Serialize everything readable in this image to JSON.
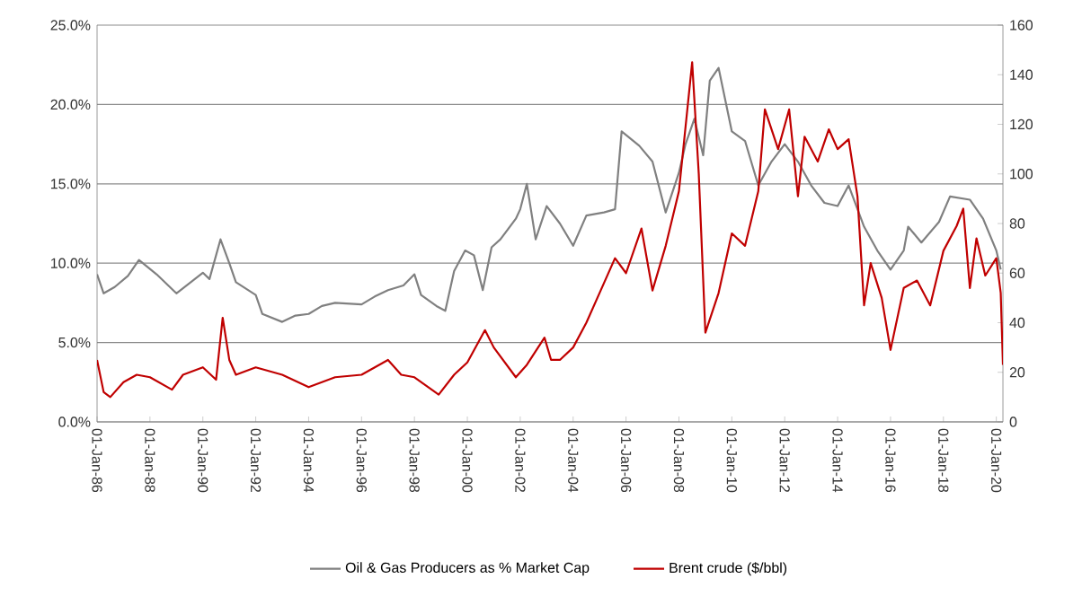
{
  "chart_data": {
    "type": "line",
    "xlim": [
      "1986-01",
      "2020-04"
    ],
    "xticks": [
      {
        "value": "1986-01-01",
        "label": "01-Jan-86"
      },
      {
        "value": "1988-01-01",
        "label": "01-Jan-88"
      },
      {
        "value": "1990-01-01",
        "label": "01-Jan-90"
      },
      {
        "value": "1992-01-01",
        "label": "01-Jan-92"
      },
      {
        "value": "1994-01-01",
        "label": "01-Jan-94"
      },
      {
        "value": "1996-01-01",
        "label": "01-Jan-96"
      },
      {
        "value": "1998-01-01",
        "label": "01-Jan-98"
      },
      {
        "value": "2000-01-01",
        "label": "01-Jan-00"
      },
      {
        "value": "2002-01-01",
        "label": "01-Jan-02"
      },
      {
        "value": "2004-01-01",
        "label": "01-Jan-04"
      },
      {
        "value": "2006-01-01",
        "label": "01-Jan-06"
      },
      {
        "value": "2008-01-01",
        "label": "01-Jan-08"
      },
      {
        "value": "2010-01-01",
        "label": "01-Jan-10"
      },
      {
        "value": "2012-01-01",
        "label": "01-Jan-12"
      },
      {
        "value": "2014-01-01",
        "label": "01-Jan-14"
      },
      {
        "value": "2016-01-01",
        "label": "01-Jan-16"
      },
      {
        "value": "2018-01-01",
        "label": "01-Jan-18"
      },
      {
        "value": "2020-01-01",
        "label": "01-Jan-20"
      }
    ],
    "ylim": [
      0,
      25
    ],
    "yticks": [
      {
        "value": 0,
        "label": "0.0%"
      },
      {
        "value": 5,
        "label": "5.0%"
      },
      {
        "value": 10,
        "label": "10.0%"
      },
      {
        "value": 15,
        "label": "15.0%"
      },
      {
        "value": 20,
        "label": "20.0%"
      },
      {
        "value": 25,
        "label": "25.0%"
      }
    ],
    "y2lim": [
      0,
      160
    ],
    "y2ticks": [
      0,
      20,
      40,
      60,
      80,
      100,
      120,
      140,
      160
    ],
    "grid": "y",
    "legend": "bottom",
    "series": [
      {
        "name": "Oil & Gas Producers as % Market Cap",
        "color": "#808080",
        "x": [
          "1986-01",
          "1986-04",
          "1986-09",
          "1987-03",
          "1987-08",
          "1988-04",
          "1989-01",
          "1990-01",
          "1990-04",
          "1990-09",
          "1991-01",
          "1991-04",
          "1992-01",
          "1992-04",
          "1993-01",
          "1993-07",
          "1994-01",
          "1994-07",
          "1995-01",
          "1996-01",
          "1996-07",
          "1997-01",
          "1997-08",
          "1998-01",
          "1998-04",
          "1998-11",
          "1999-03",
          "1999-07",
          "1999-12",
          "2000-04",
          "2000-08",
          "2000-12",
          "2001-04",
          "2001-11",
          "2002-01",
          "2002-04",
          "2002-08",
          "2003-01",
          "2003-07",
          "2004-01",
          "2004-07",
          "2005-03",
          "2005-08",
          "2005-11",
          "2006-07",
          "2007-01",
          "2007-07",
          "2008-01",
          "2008-04",
          "2008-08",
          "2008-12",
          "2009-03",
          "2009-07",
          "2010-01",
          "2010-07",
          "2011-01",
          "2011-07",
          "2012-01",
          "2012-07",
          "2013-01",
          "2013-07",
          "2014-01",
          "2014-06",
          "2015-01",
          "2015-07",
          "2016-01",
          "2016-07",
          "2016-09",
          "2017-03",
          "2017-11",
          "2018-04",
          "2019-01",
          "2019-07",
          "2020-01",
          "2020-03"
        ],
        "values": [
          9.3,
          8.1,
          8.5,
          9.2,
          10.2,
          9.3,
          8.1,
          9.4,
          9.0,
          11.5,
          10.0,
          8.8,
          8.0,
          6.8,
          6.3,
          6.7,
          6.8,
          7.3,
          7.5,
          7.4,
          7.9,
          8.3,
          8.6,
          9.3,
          8.0,
          7.3,
          7.0,
          9.5,
          10.8,
          10.5,
          8.3,
          11.0,
          11.5,
          12.8,
          13.4,
          15.0,
          11.5,
          13.6,
          12.5,
          11.1,
          13.0,
          13.2,
          13.4,
          18.3,
          17.4,
          16.4,
          13.2,
          15.7,
          17.5,
          19.1,
          16.8,
          21.5,
          22.3,
          18.3,
          17.7,
          14.9,
          16.4,
          17.5,
          16.4,
          14.9,
          13.8,
          13.6,
          14.9,
          12.3,
          10.8,
          9.6,
          10.8,
          12.3,
          11.3,
          12.6,
          14.2,
          14.0,
          12.8,
          10.8,
          9.6
        ]
      },
      {
        "name": "Brent crude ($/bbl)",
        "color": "#c00000",
        "axis": "y2",
        "x": [
          "1986-01",
          "1986-04",
          "1986-07",
          "1987-01",
          "1987-07",
          "1988-01",
          "1988-11",
          "1989-04",
          "1990-01",
          "1990-07",
          "1990-10",
          "1991-01",
          "1991-04",
          "1992-01",
          "1993-01",
          "1994-01",
          "1995-01",
          "1996-01",
          "1997-01",
          "1997-07",
          "1998-01",
          "1998-12",
          "1999-07",
          "2000-01",
          "2000-09",
          "2001-01",
          "2001-11",
          "2002-04",
          "2002-12",
          "2003-03",
          "2003-07",
          "2004-01",
          "2004-07",
          "2005-01",
          "2005-08",
          "2006-01",
          "2006-08",
          "2007-01",
          "2007-07",
          "2008-01",
          "2008-07",
          "2008-10",
          "2009-01",
          "2009-07",
          "2010-01",
          "2010-07",
          "2011-01",
          "2011-04",
          "2011-10",
          "2012-03",
          "2012-07",
          "2012-10",
          "2013-04",
          "2013-09",
          "2014-01",
          "2014-06",
          "2014-10",
          "2015-01",
          "2015-04",
          "2015-09",
          "2016-01",
          "2016-07",
          "2017-01",
          "2017-07",
          "2018-01",
          "2018-07",
          "2018-10",
          "2019-01",
          "2019-04",
          "2019-08",
          "2020-01",
          "2020-03",
          "2020-04"
        ],
        "values": [
          25,
          12,
          10,
          16,
          19,
          18,
          13,
          19,
          22,
          17,
          42,
          25,
          19,
          22,
          19,
          14,
          18,
          19,
          25,
          19,
          18,
          11,
          19,
          24,
          37,
          30,
          18,
          23,
          34,
          25,
          25,
          30,
          40,
          52,
          66,
          60,
          78,
          53,
          71,
          93,
          145,
          100,
          36,
          52,
          76,
          71,
          93,
          126,
          110,
          126,
          91,
          115,
          105,
          118,
          110,
          114,
          91,
          47,
          64,
          50,
          29,
          54,
          57,
          47,
          69,
          79,
          86,
          54,
          74,
          59,
          66,
          52,
          23
        ]
      }
    ]
  }
}
